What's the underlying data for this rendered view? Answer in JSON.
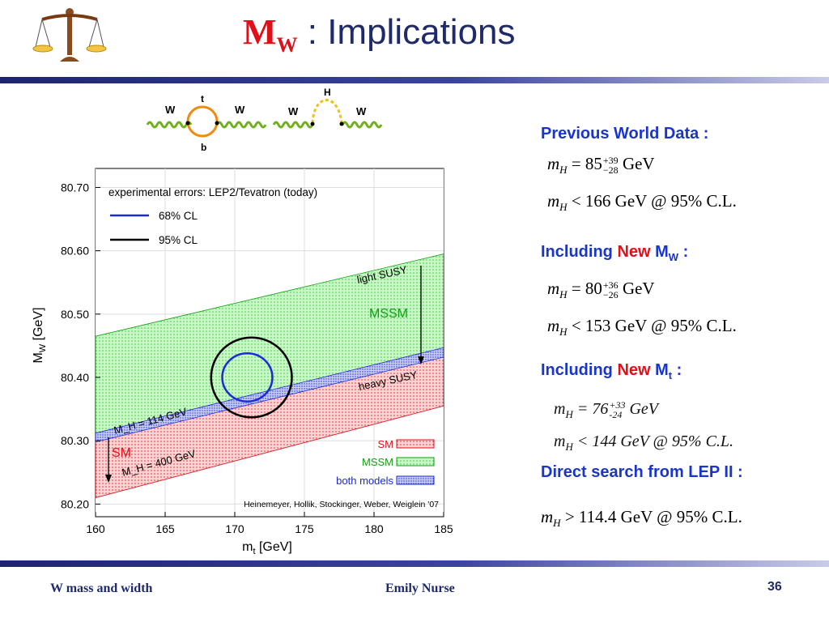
{
  "slide": {
    "title_main": "M",
    "title_sub": "W",
    "title_rest": " : Implications",
    "page_number": "36",
    "footer_left": "W mass and width",
    "footer_center": "Emily Nurse"
  },
  "diagram": {
    "loop1": {
      "left": "W",
      "right": "W",
      "top": "t",
      "bottom": "b"
    },
    "loop2": {
      "left": "W",
      "right": "W",
      "top": "H"
    }
  },
  "right_panel": {
    "sections": [
      {
        "heading": "Previous World Data :",
        "eq1_val": "85",
        "eq1_sup": "+39",
        "eq1_sub": "−28",
        "eq2": "< 166 GeV @ 95% C.L."
      },
      {
        "heading_pre": "Including ",
        "heading_red": "New",
        "heading_post_main": " M",
        "heading_post_sub": "W",
        "heading_post_end": " :",
        "eq1_val": "80",
        "eq1_sup": "+36",
        "eq1_sub": "−26",
        "eq2": "< 153 GeV @ 95% C.L."
      },
      {
        "heading_pre": "Including ",
        "heading_red": "New",
        "heading_post_main": " M",
        "heading_post_sub": "t",
        "heading_post_end": " :",
        "eq1_val": "76",
        "eq1_sup": "+33",
        "eq1_sub": "-24",
        "eq2": "< 144 GeV @ 95% C.L."
      },
      {
        "heading": "Direct search from LEP II :",
        "eq": "> 114.4 GeV @ 95% C.L."
      }
    ],
    "gev": "GeV",
    "equals": "=",
    "m": "m",
    "h": "H"
  },
  "chart_data": {
    "type": "area",
    "xlabel": "m_t [GeV]",
    "ylabel": "M_W [GeV]",
    "xlim": [
      160,
      185
    ],
    "ylim": [
      80.18,
      80.73
    ],
    "xticks": [
      "160",
      "165",
      "170",
      "175",
      "180",
      "185"
    ],
    "yticks": [
      "80.20",
      "80.30",
      "80.40",
      "80.50",
      "80.60",
      "80.70"
    ],
    "legend_title": "experimental errors: LEP2/Tevatron (today)",
    "legend_ellipses": [
      {
        "label": "68% CL",
        "color": "#1a2bd6"
      },
      {
        "label": "95% CL",
        "color": "#000000"
      }
    ],
    "legend_bands": [
      {
        "label": "SM",
        "color": "#e0101a"
      },
      {
        "label": "MSSM",
        "color": "#10a010"
      },
      {
        "label": "both models",
        "color": "#1a2bd6"
      }
    ],
    "credit": "Heinemeyer, Hollik, Stockinger, Weber, Weiglein '07",
    "band_labels": {
      "light_susy": "light SUSY",
      "heavy_susy": "heavy SUSY",
      "mssm": "MSSM",
      "sm": "SM",
      "mh114": "M_H = 114 GeV",
      "mh400": "M_H = 400 GeV"
    },
    "series": [
      {
        "name": "MSSM",
        "x": [
          160,
          185
        ],
        "y_low": [
          80.305,
          80.44
        ],
        "y_high": [
          80.465,
          80.595
        ]
      },
      {
        "name": "SM",
        "x": [
          160,
          185
        ],
        "y_low": [
          80.21,
          80.355
        ],
        "y_high": [
          80.305,
          80.44
        ]
      },
      {
        "name": "both models",
        "x": [
          160,
          185
        ],
        "y_low": [
          80.298,
          80.432
        ],
        "y_high": [
          80.312,
          80.447
        ]
      }
    ],
    "ellipses": [
      {
        "name": "68% CL",
        "cx": 170.9,
        "cy": 80.4,
        "rx": 1.8,
        "ry": 0.038
      },
      {
        "name": "95% CL",
        "cx": 171.2,
        "cy": 80.4,
        "rx": 2.9,
        "ry": 0.063
      }
    ]
  }
}
